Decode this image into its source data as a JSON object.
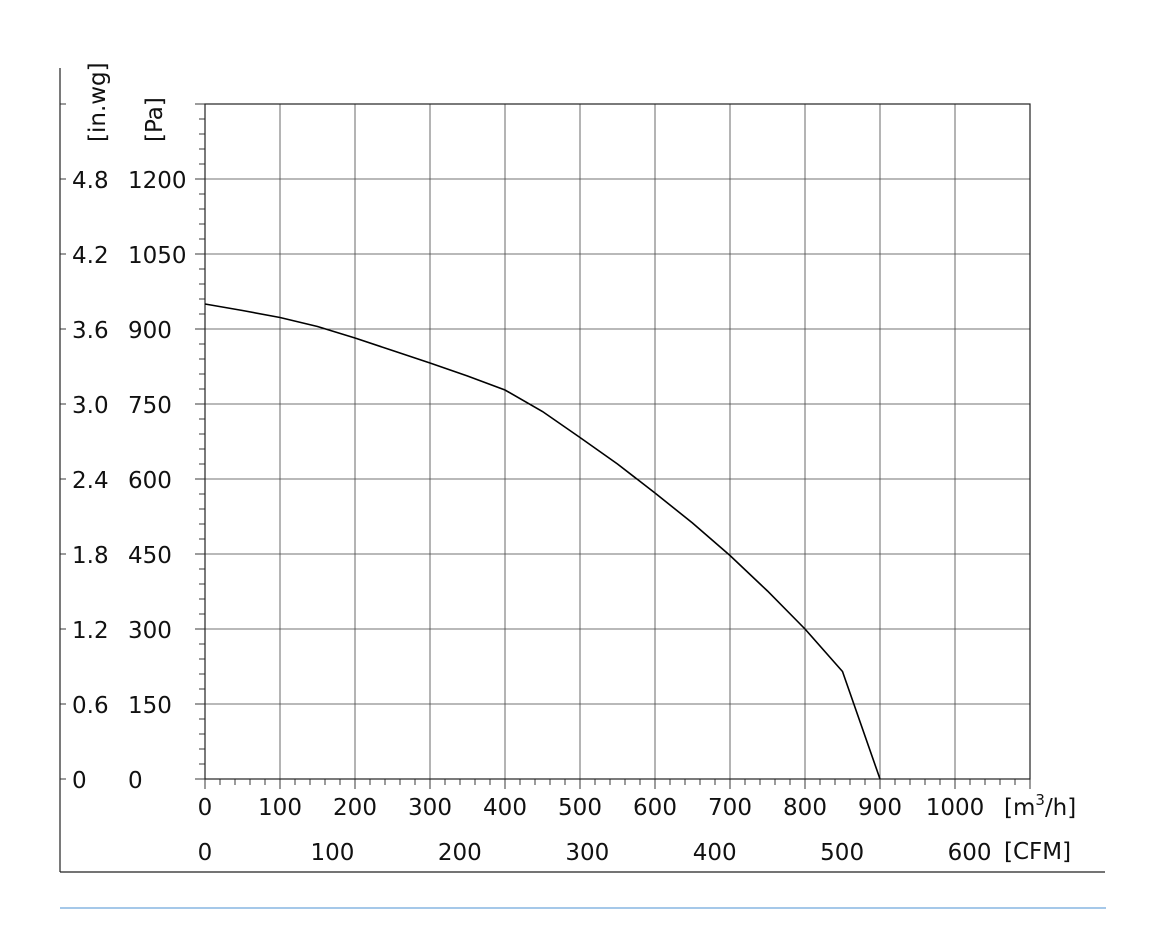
{
  "chart_data": {
    "type": "line",
    "series": [
      {
        "x": [
          0,
          50,
          100,
          150,
          200,
          250,
          300,
          350,
          400,
          450,
          500,
          550,
          600,
          650,
          700,
          750,
          800,
          850,
          900
        ],
        "y": [
          950,
          937,
          923,
          905,
          882,
          857,
          832,
          806,
          778,
          735,
          683,
          630,
          572,
          512,
          447,
          376,
          300,
          215,
          0
        ]
      }
    ],
    "x_primary": {
      "unit": "[m³/h]",
      "unit_base": "[m",
      "unit_sup": "3",
      "unit_tail": "/h]",
      "ticks": [
        "0",
        "100",
        "200",
        "300",
        "400",
        "500",
        "600",
        "700",
        "800",
        "900",
        "1000"
      ],
      "range": [
        0,
        1100
      ]
    },
    "x_secondary": {
      "unit": "[CFM]",
      "ticks": [
        "0",
        "100",
        "200",
        "300",
        "400",
        "500",
        "600"
      ],
      "tick_values_cfm": [
        0,
        100,
        200,
        300,
        400,
        500,
        600
      ]
    },
    "y_primary": {
      "unit": "[Pa]",
      "ticks": [
        "0",
        "150",
        "300",
        "450",
        "600",
        "750",
        "900",
        "1050",
        "1200"
      ],
      "range": [
        0,
        1350
      ]
    },
    "y_secondary": {
      "unit": "[in.wg]",
      "ticks": [
        "0",
        "0.6",
        "1.2",
        "1.8",
        "2.4",
        "3.0",
        "3.6",
        "4.2",
        "4.8"
      ]
    },
    "grid": true
  },
  "colors": {
    "line": "#000000",
    "grid": "#444444",
    "footer_rule": "#6fa8dc"
  }
}
